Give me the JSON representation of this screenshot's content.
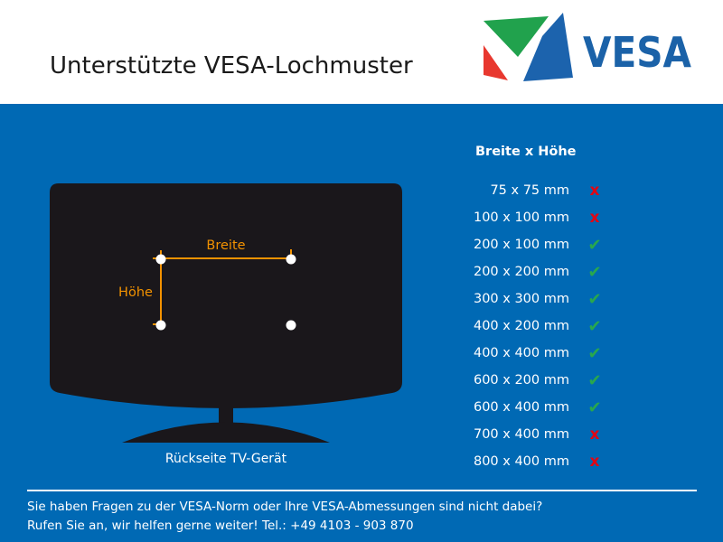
{
  "header": {
    "title": "Unterstützte VESA-Lochmuster",
    "logo_text": "VESA"
  },
  "diagram": {
    "width_label": "Breite",
    "height_label": "Höhe",
    "caption": "Rückseite TV-Gerät"
  },
  "pattern_list": {
    "header": "Breite x Höhe",
    "items": [
      {
        "size": "75 x 75 mm",
        "supported": false
      },
      {
        "size": "100 x 100 mm",
        "supported": false
      },
      {
        "size": "200 x 100 mm",
        "supported": true
      },
      {
        "size": "200 x 200 mm",
        "supported": true
      },
      {
        "size": "300 x 300 mm",
        "supported": true
      },
      {
        "size": "400 x 200 mm",
        "supported": true
      },
      {
        "size": "400 x 400 mm",
        "supported": true
      },
      {
        "size": "600 x 200 mm",
        "supported": true
      },
      {
        "size": "600 x 400 mm",
        "supported": true
      },
      {
        "size": "700 x 400 mm",
        "supported": false
      },
      {
        "size": "800 x 400 mm",
        "supported": false
      }
    ]
  },
  "icons": {
    "check": "✔",
    "cross": "x"
  },
  "footer": {
    "line1": "Sie haben Fragen zu der VESA-Norm oder Ihre VESA-Abmessungen sind nicht dabei?",
    "line2": "Rufen Sie an, wir helfen gerne weiter! Tel.: +49 4103 - 903 870"
  },
  "colors": {
    "background_blue": "#0069B4",
    "tv_black": "#1A171B",
    "dimension_orange": "#F39200",
    "check_green": "#28A74E",
    "cross_red": "#E30613",
    "logo_green": "#21A24D",
    "logo_red": "#E8382F",
    "logo_blue": "#1C63AD",
    "logo_text_blue": "#1B62A8"
  }
}
